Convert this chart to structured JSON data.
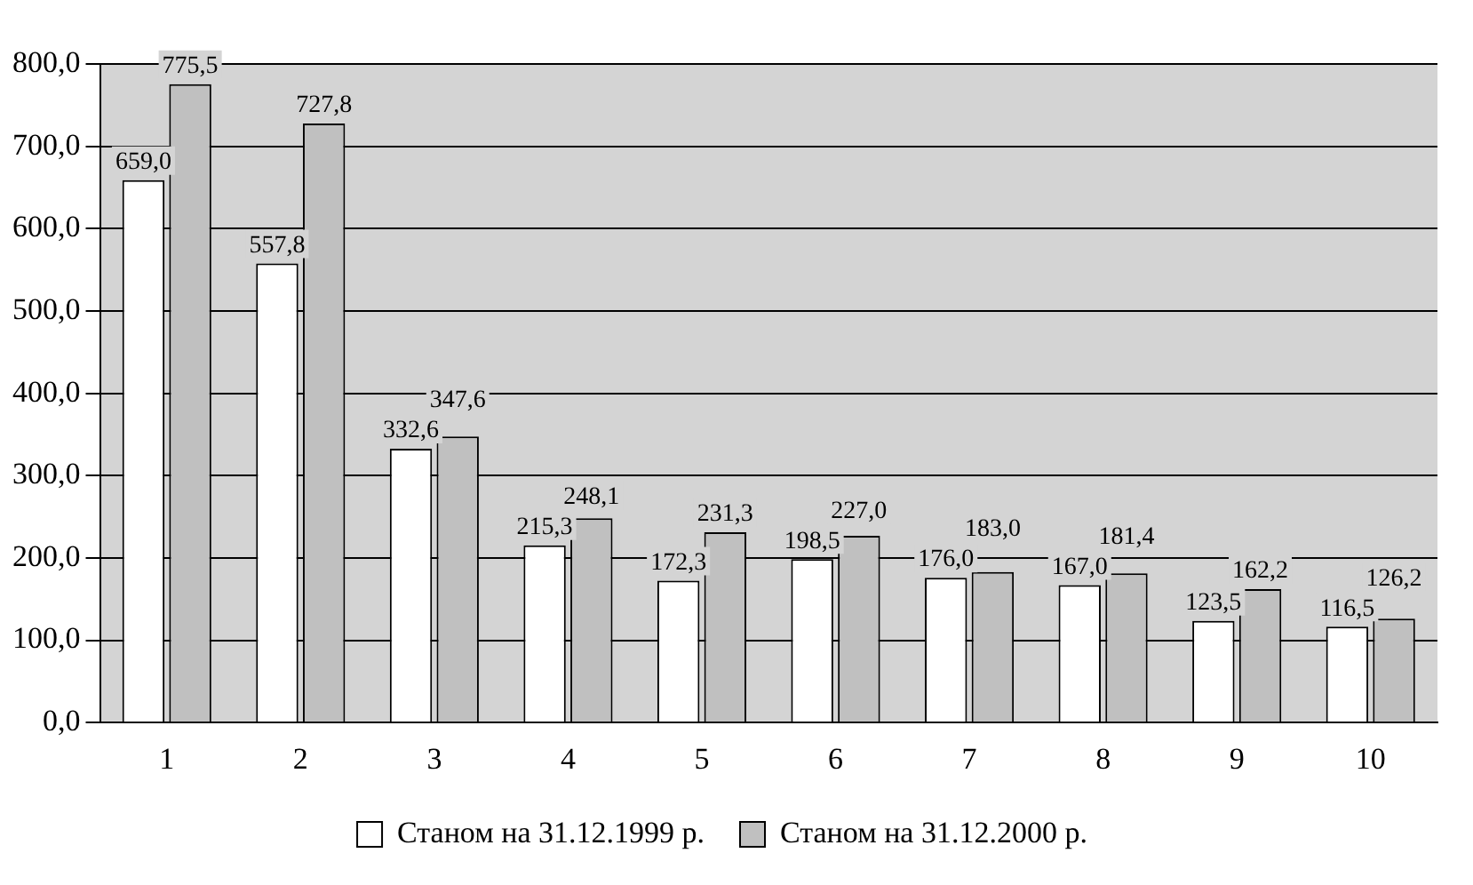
{
  "chart_data": {
    "type": "bar",
    "categories": [
      "1",
      "2",
      "3",
      "4",
      "5",
      "6",
      "7",
      "8",
      "9",
      "10"
    ],
    "series": [
      {
        "name": "Станом на 31.12.1999 р.",
        "color": "#ffffff",
        "values": [
          659.0,
          557.8,
          332.6,
          215.3,
          172.3,
          198.5,
          176.0,
          167.0,
          123.5,
          116.5
        ],
        "value_labels": [
          "659,0",
          "557,8",
          "332,6",
          "215,3",
          "172,3",
          "198,5",
          "176,0",
          "167,0",
          "123,5",
          "116,5"
        ]
      },
      {
        "name": "Станом на 31.12.2000 р.",
        "color": "#c0c0c0",
        "values": [
          775.5,
          727.8,
          347.6,
          248.1,
          231.3,
          227.0,
          183.0,
          181.4,
          162.2,
          126.2
        ],
        "value_labels": [
          "775,5",
          "727,8",
          "347,6",
          "248,1",
          "231,3",
          "227,0",
          "183,0",
          "181,4",
          "162,2",
          "126,2"
        ]
      }
    ],
    "ylim": [
      0,
      800
    ],
    "yticks": [
      {
        "value": 0,
        "label": "0,0"
      },
      {
        "value": 100,
        "label": "100,0"
      },
      {
        "value": 200,
        "label": "200,0"
      },
      {
        "value": 300,
        "label": "300,0"
      },
      {
        "value": 400,
        "label": "400,0"
      },
      {
        "value": 500,
        "label": "500,0"
      },
      {
        "value": 600,
        "label": "600,0"
      },
      {
        "value": 700,
        "label": "700,0"
      },
      {
        "value": 800,
        "label": "800,0"
      }
    ],
    "grid": "y",
    "legend": "bottom"
  }
}
